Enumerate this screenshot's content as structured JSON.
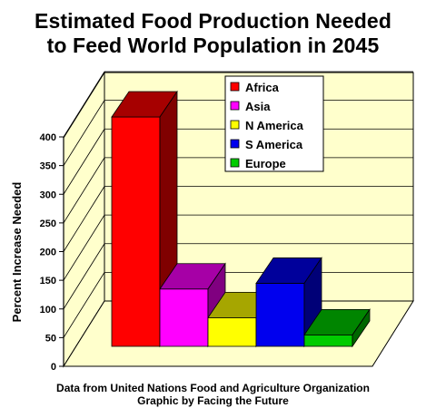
{
  "chart_data": {
    "type": "bar",
    "title_lines": [
      "Estimated Food Production Needed",
      "to Feed World Population in 2045"
    ],
    "ylabel": "Percent Increase Needed",
    "xlabel": "",
    "categories": [
      "Africa",
      "Asia",
      "N America",
      "S America",
      "Europe"
    ],
    "values": [
      400,
      100,
      50,
      110,
      20
    ],
    "colors": {
      "Africa": "#ff0000",
      "Asia": "#ff00ff",
      "N America": "#ffff00",
      "S America": "#0000ee",
      "Europe": "#00cc00"
    },
    "ylim": [
      0,
      400
    ],
    "yticks": [
      0,
      50,
      100,
      150,
      200,
      250,
      300,
      350,
      400
    ],
    "grid": true,
    "legend": {
      "placement": "top-right",
      "entries": [
        "Africa",
        "Asia",
        "N America",
        "S America",
        "Europe"
      ]
    },
    "style": "3d",
    "wall_color": "#ffffcc",
    "footer": [
      "Data from United Nations Food and Agriculture Organization",
      "Graphic by Facing the Future"
    ]
  }
}
